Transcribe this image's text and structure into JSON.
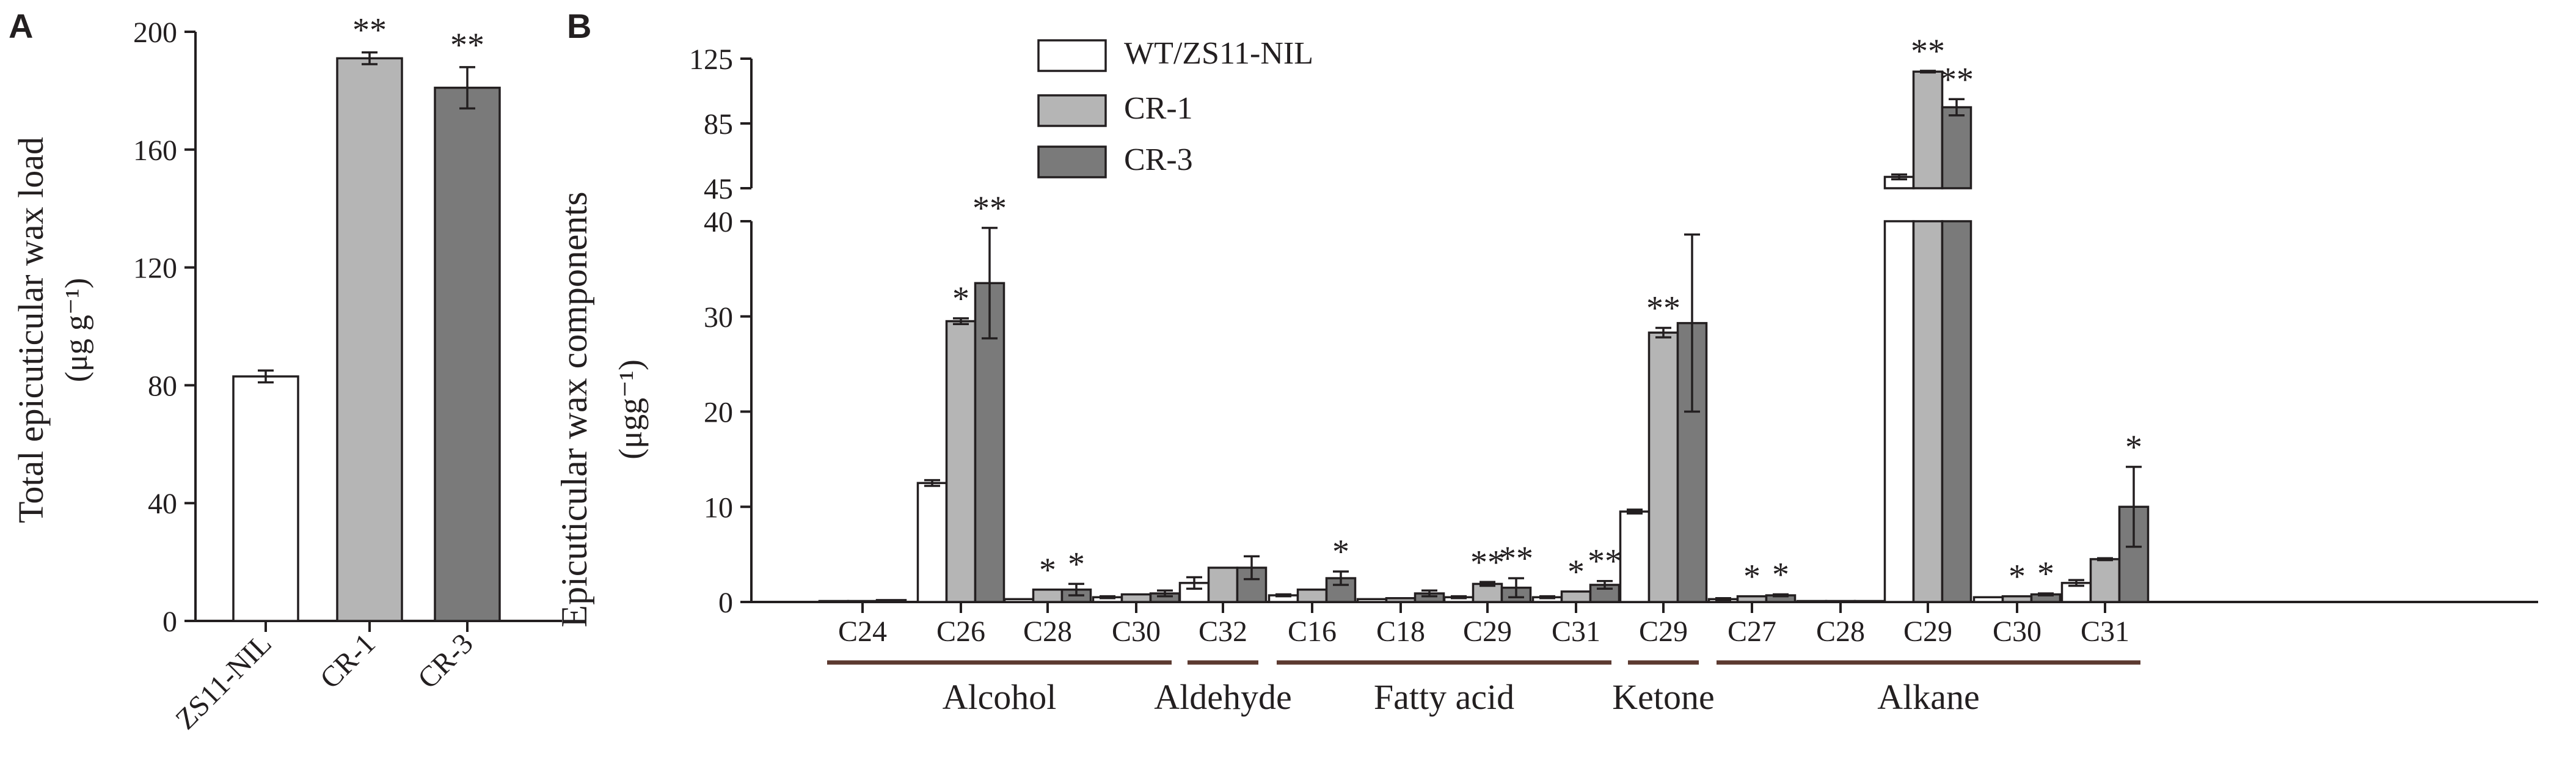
{
  "colors": {
    "wt": "#ffffff",
    "cr1": "#b5b5b5",
    "cr3": "#7a7a7a",
    "axis": "#231f20",
    "group_line": "#5c3a30"
  },
  "chart_data": [
    {
      "panel_label": "A",
      "type": "bar",
      "title": "",
      "xlabel": "",
      "ylabel": "Total epicuticular wax load",
      "ylabel_unit": "(μg g⁻¹)",
      "ylim": [
        0,
        200
      ],
      "yticks": [
        "0",
        "40",
        "80",
        "120",
        "160",
        "200"
      ],
      "categories": [
        "ZS11-NIL",
        "CR-1",
        "CR-3"
      ],
      "values": [
        83,
        191,
        181
      ],
      "errors": [
        2,
        2,
        7
      ],
      "significance": [
        "",
        "**",
        "**"
      ]
    },
    {
      "panel_label": "B",
      "type": "bar",
      "title": "",
      "ylabel": "Epicuticular wax components",
      "ylabel_unit": "(μgg⁻¹)",
      "y_break": true,
      "ylim_lower": [
        0,
        40
      ],
      "yticks_lower": [
        "0",
        "10",
        "20",
        "30",
        "40"
      ],
      "ylim_upper": [
        45,
        125
      ],
      "yticks_upper": [
        "45",
        "85",
        "125"
      ],
      "categories": [
        "C24",
        "C26",
        "C28",
        "C30",
        "C32",
        "C16",
        "C18",
        "C29",
        "C31",
        "C29",
        "C27",
        "C28",
        "C29",
        "C30",
        "C31"
      ],
      "groups": [
        {
          "name": "Alcohol",
          "start": 0,
          "end": 3
        },
        {
          "name": "Aldehyde",
          "start": 4,
          "end": 4
        },
        {
          "name": "Fatty acid",
          "start": 5,
          "end": 8
        },
        {
          "name": "Ketone",
          "start": 9,
          "end": 9
        },
        {
          "name": "Alkane",
          "start": 10,
          "end": 14
        }
      ],
      "series": [
        {
          "name": "WT/ZS11-NIL",
          "values": [
            0.1,
            12.5,
            0.3,
            0.5,
            2.0,
            0.7,
            0.3,
            0.5,
            0.5,
            9.5,
            0.3,
            0.1,
            52,
            0.5,
            2.0
          ],
          "errors": [
            0,
            0.3,
            0,
            0.1,
            0.6,
            0.1,
            0,
            0.1,
            0.1,
            0.2,
            0.1,
            0,
            1.5,
            0,
            0.3
          ],
          "significance": [
            "",
            "",
            "",
            "",
            "",
            "",
            "",
            "",
            "",
            "",
            "",
            "",
            "",
            "",
            ""
          ]
        },
        {
          "name": "CR-1",
          "values": [
            0.1,
            29.5,
            1.3,
            0.8,
            3.6,
            1.3,
            0.4,
            1.9,
            1.1,
            28.3,
            0.6,
            0.1,
            117,
            0.6,
            4.5
          ],
          "errors": [
            0,
            0.3,
            0,
            0,
            0,
            0,
            0,
            0.2,
            0,
            0.5,
            0,
            0,
            0.5,
            0,
            0.1
          ],
          "significance": [
            "",
            "*",
            "*",
            "",
            "",
            "",
            "",
            "**",
            "*",
            "**",
            "*",
            "",
            "**",
            "*",
            ""
          ]
        },
        {
          "name": "CR-3",
          "values": [
            0.2,
            33.5,
            1.3,
            0.9,
            3.6,
            2.5,
            0.9,
            1.5,
            1.8,
            29.3,
            0.7,
            0.1,
            95,
            0.8,
            10.0
          ],
          "errors": [
            0,
            5.8,
            0.6,
            0.3,
            1.2,
            0.7,
            0.3,
            1.0,
            0.4,
            9.3,
            0.1,
            0,
            5.0,
            0.1,
            4.2
          ],
          "significance": [
            "",
            "**",
            "*",
            "",
            "",
            "*",
            "",
            "**",
            "**",
            "",
            "*",
            "",
            "**",
            "*",
            "*"
          ]
        }
      ]
    }
  ]
}
